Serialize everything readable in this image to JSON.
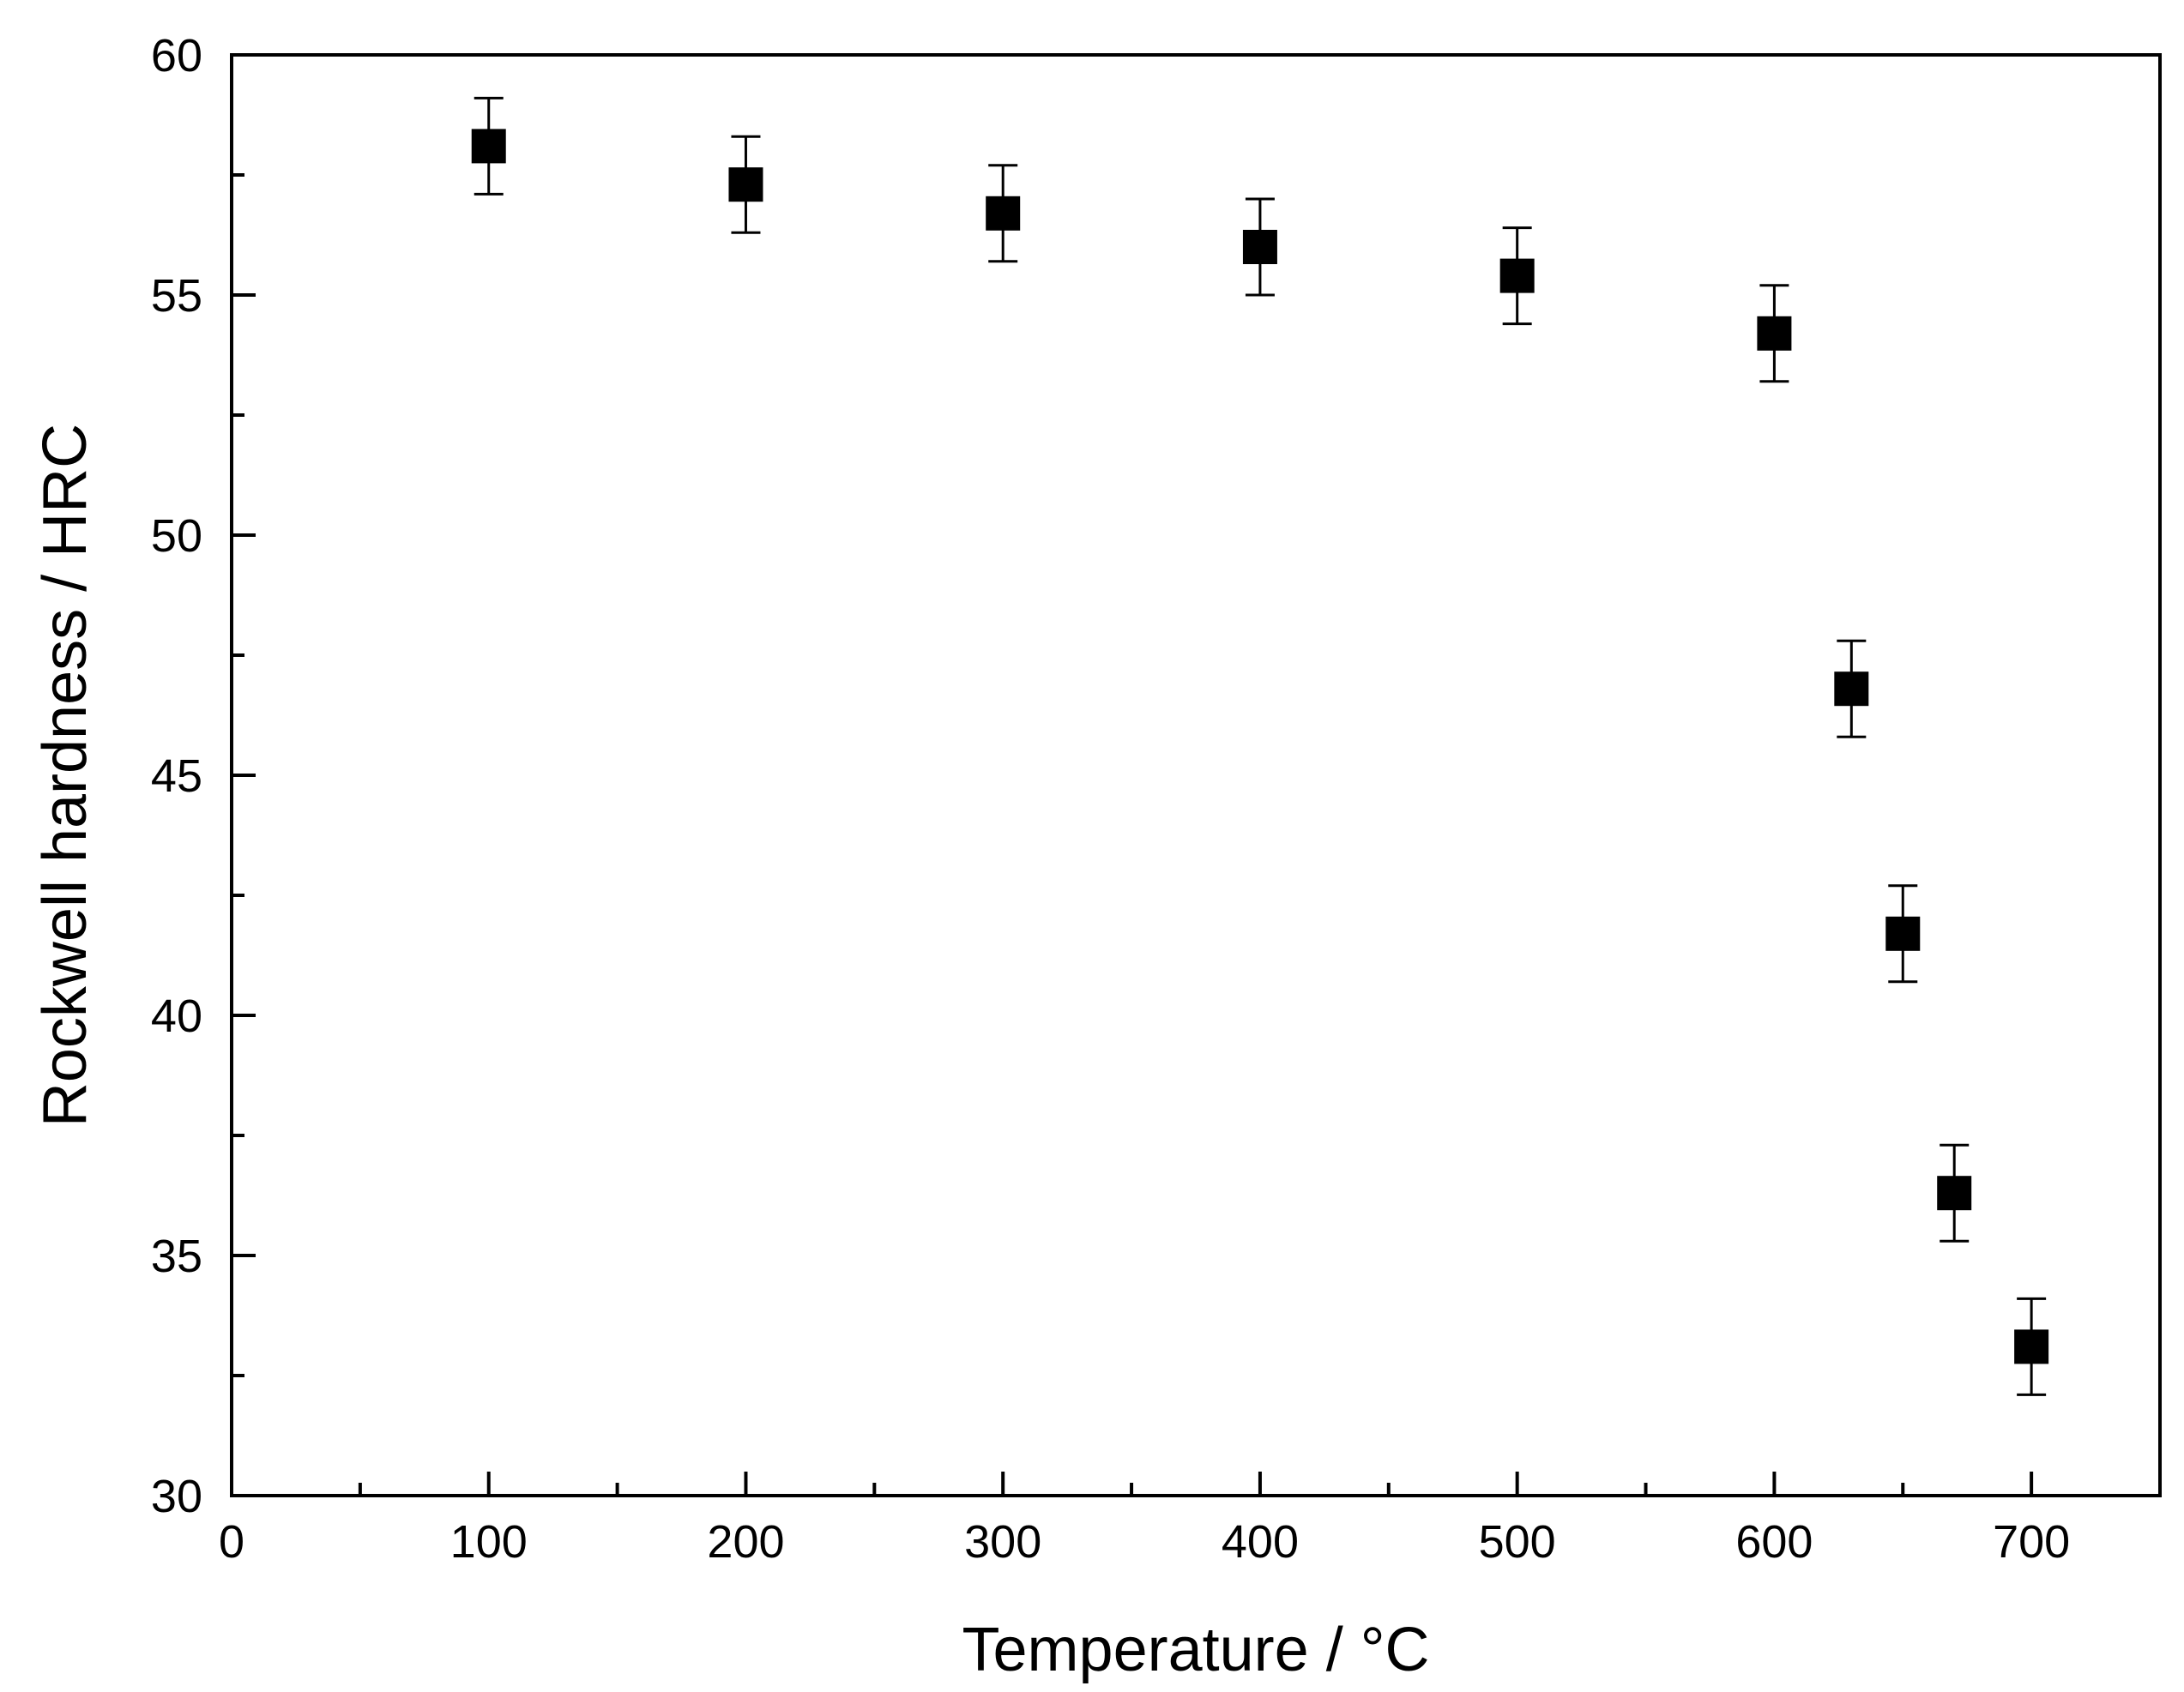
{
  "chart_data": {
    "type": "scatter",
    "title": "",
    "xlabel": "Temperature / °C",
    "ylabel": "Rockwell hardness / HRC",
    "xlim": [
      0,
      750
    ],
    "ylim": [
      30,
      60
    ],
    "x_ticks": [
      0,
      100,
      200,
      300,
      400,
      500,
      600,
      700
    ],
    "y_ticks": [
      30,
      35,
      40,
      45,
      50,
      55,
      60
    ],
    "x_minor_ticks": [
      50,
      150,
      250,
      350,
      450,
      550,
      650
    ],
    "y_minor_ticks": [
      32.5,
      37.5,
      42.5,
      47.5,
      52.5,
      57.5
    ],
    "grid": false,
    "legend": "none",
    "marker": "square",
    "marker_color": "#000000",
    "series": [
      {
        "x": [
          100,
          200,
          300,
          400,
          500,
          600,
          630,
          650,
          670,
          700
        ],
        "y": [
          58.1,
          57.3,
          56.7,
          56.0,
          55.4,
          54.2,
          46.8,
          41.7,
          36.3,
          33.1
        ],
        "error": [
          1.0,
          1.0,
          1.0,
          1.0,
          1.0,
          1.0,
          1.0,
          1.0,
          1.0,
          1.0
        ]
      }
    ]
  }
}
